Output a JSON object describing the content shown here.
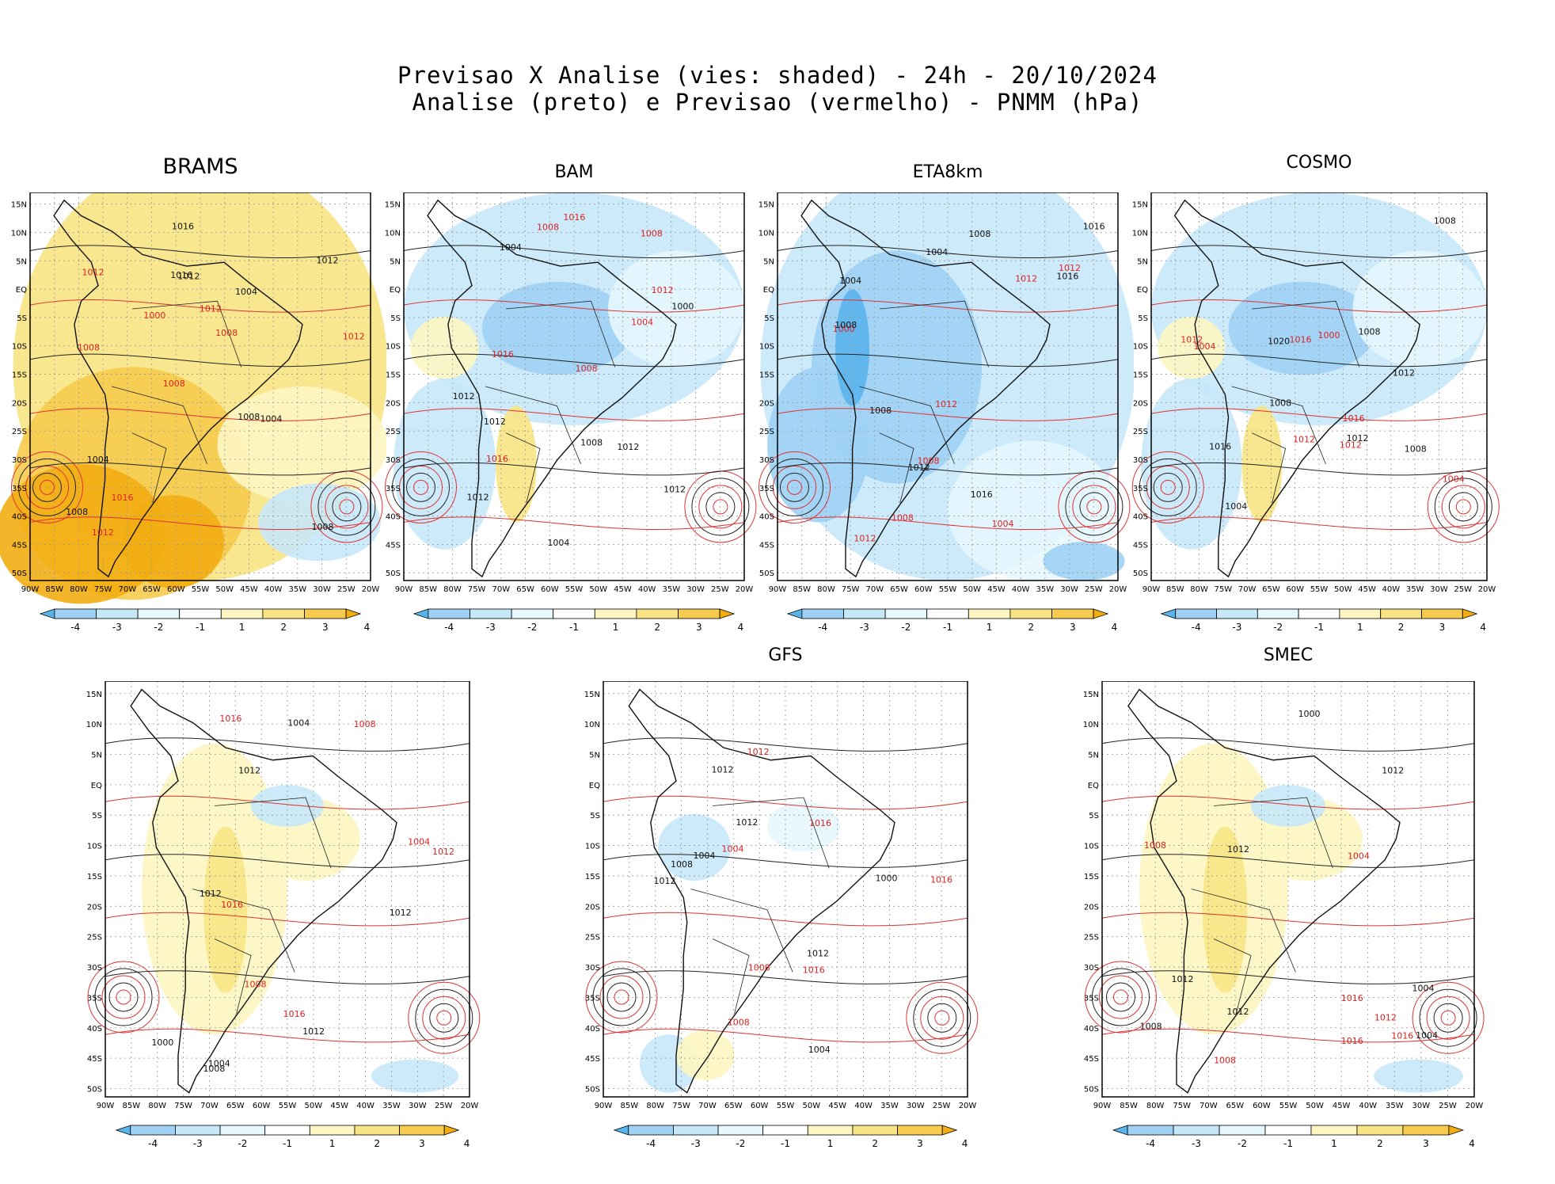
{
  "header": {
    "line1": "Previsao X Analise (vies: shaded) - 24h - 20/10/2024",
    "line2": "Analise (preto) e Previsao (vermelho) - PNMM (hPa)"
  },
  "axes": {
    "lat_labels": [
      "15N",
      "10N",
      "5N",
      "EQ",
      "5S",
      "10S",
      "15S",
      "20S",
      "25S",
      "30S",
      "35S",
      "40S",
      "45S",
      "50S"
    ],
    "lon_labels": [
      "90W",
      "85W",
      "80W",
      "75W",
      "70W",
      "65W",
      "60W",
      "55W",
      "50W",
      "45W",
      "40W",
      "35W",
      "30W",
      "25W",
      "20W"
    ]
  },
  "colorbar": {
    "labels": [
      "-4",
      "-3",
      "-2",
      "-1",
      "1",
      "2",
      "3",
      "4"
    ],
    "colors": [
      "#5ab4ec",
      "#9fd1f4",
      "#c6e8f8",
      "#e6f7fd",
      "#ffffff",
      "#fdf6c2",
      "#f8e484",
      "#f6cb4e",
      "#f2ad13"
    ]
  },
  "panels": [
    {
      "title": "BRAMS",
      "bias": "warm_strong"
    },
    {
      "title": "BAM",
      "bias": "cool_mixed"
    },
    {
      "title": "ETA8km",
      "bias": "cool"
    },
    {
      "title": "COSMO",
      "bias": "cool_mixed"
    },
    {
      "title": "",
      "bias": "warm_light"
    },
    {
      "title": "GFS",
      "bias": "neutral"
    },
    {
      "title": "SMEC",
      "bias": "warm_light"
    }
  ],
  "contour_labels": {
    "BRAMS": [
      "1008",
      "1008",
      "1012",
      "1008",
      "1004",
      "1012",
      "1016",
      "1012",
      "1004",
      "1000",
      "1008",
      "1016",
      "1012",
      "1008",
      "1004",
      "1012",
      "1016",
      "1012",
      "1008"
    ],
    "BAM": [
      "1012",
      "1008",
      "1004",
      "1012",
      "1008",
      "1016",
      "1012",
      "1016",
      "1000",
      "1004",
      "1012",
      "1016",
      "1012",
      "1008",
      "1004",
      "1008",
      "1012"
    ],
    "ETA8km": [
      "1012",
      "1008",
      "1008",
      "1012",
      "1004",
      "1008",
      "1016",
      "1012",
      "1016",
      "1000",
      "1004",
      "1012",
      "1016",
      "1012",
      "1008",
      "1004",
      "1008"
    ],
    "COSMO": [
      "1012",
      "1004",
      "1008",
      "1012",
      "1008",
      "1016",
      "1012",
      "1016",
      "1020",
      "1000",
      "1004",
      "1012",
      "1016",
      "1012",
      "1008",
      "1004",
      "1008"
    ],
    "Panel5": [
      "1012",
      "1008",
      "1004",
      "1012",
      "1008",
      "1016",
      "1012",
      "1016",
      "1000",
      "1004",
      "1012",
      "1016",
      "1012",
      "1008",
      "1004"
    ],
    "GFS": [
      "1012",
      "1008",
      "1004",
      "1012",
      "1008",
      "1016",
      "1012",
      "1016",
      "1000",
      "1004",
      "1012",
      "1016",
      "1012",
      "1008",
      "1004"
    ],
    "SMEC": [
      "1012",
      "1008",
      "1004",
      "1012",
      "1008",
      "1016",
      "1012",
      "1016",
      "1000",
      "1004",
      "1012",
      "1016",
      "1012",
      "1008",
      "1004"
    ]
  }
}
